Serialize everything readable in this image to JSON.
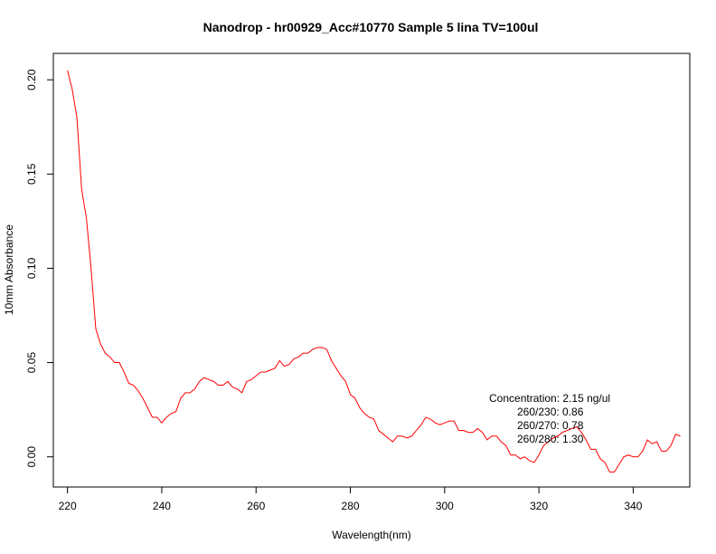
{
  "chart_data": {
    "type": "line",
    "title": "Nanodrop - hr00929_Acc#10770 Sample 5 lina TV=100ul",
    "xlabel": "Wavelength(nm)",
    "ylabel": "10mm Absorbance",
    "xlim": [
      217,
      352
    ],
    "ylim": [
      -0.016,
      0.214
    ],
    "x_ticks": [
      220,
      240,
      260,
      280,
      300,
      320,
      340
    ],
    "x_tick_labels": [
      "220",
      "240",
      "260",
      "280",
      "300",
      "320",
      "340"
    ],
    "y_ticks": [
      0.0,
      0.05,
      0.1,
      0.15,
      0.2
    ],
    "y_tick_labels": [
      "0.00",
      "0.05",
      "0.10",
      "0.15",
      "0.20"
    ],
    "grid": false,
    "line_color": "#ff0000",
    "series": [
      {
        "x": [
          220,
          221,
          222,
          223,
          224,
          225,
          226,
          227,
          228,
          229,
          230,
          231,
          232,
          233,
          234,
          235,
          236,
          237,
          238,
          239,
          240,
          241,
          242,
          243,
          244,
          245,
          246,
          247,
          248,
          249,
          250,
          251,
          252,
          253,
          254,
          255,
          256,
          257,
          258,
          259,
          260,
          261,
          262,
          263,
          264,
          265,
          266,
          267,
          268,
          269,
          270,
          271,
          272,
          273,
          274,
          275,
          276,
          277,
          278,
          279,
          280,
          281,
          282,
          283,
          284,
          285,
          286,
          287,
          288,
          289,
          290,
          291,
          292,
          293,
          294,
          295,
          296,
          297,
          298,
          299,
          300,
          301,
          302,
          303,
          304,
          305,
          306,
          307,
          308,
          309,
          310,
          311,
          312,
          313,
          314,
          315,
          316,
          317,
          318,
          319,
          320,
          321,
          322,
          323,
          324,
          325,
          326,
          327,
          328,
          329,
          330,
          331,
          332,
          333,
          334,
          335,
          336,
          337,
          338,
          339,
          340,
          341,
          342,
          343,
          344,
          345,
          346,
          347,
          348,
          349,
          350
        ],
        "y": [
          0.205,
          0.195,
          0.18,
          0.142,
          0.127,
          0.1,
          0.068,
          0.06,
          0.055,
          0.053,
          0.05,
          0.05,
          0.045,
          0.039,
          0.038,
          0.035,
          0.031,
          0.026,
          0.021,
          0.021,
          0.018,
          0.021,
          0.023,
          0.024,
          0.031,
          0.034,
          0.034,
          0.036,
          0.04,
          0.042,
          0.041,
          0.04,
          0.038,
          0.038,
          0.04,
          0.037,
          0.036,
          0.034,
          0.04,
          0.041,
          0.043,
          0.045,
          0.045,
          0.046,
          0.047,
          0.051,
          0.048,
          0.049,
          0.052,
          0.053,
          0.055,
          0.055,
          0.057,
          0.058,
          0.058,
          0.057,
          0.051,
          0.047,
          0.043,
          0.04,
          0.033,
          0.031,
          0.026,
          0.023,
          0.021,
          0.02,
          0.014,
          0.012,
          0.01,
          0.008,
          0.011,
          0.011,
          0.01,
          0.011,
          0.014,
          0.017,
          0.021,
          0.02,
          0.018,
          0.017,
          0.018,
          0.019,
          0.019,
          0.014,
          0.014,
          0.013,
          0.013,
          0.015,
          0.013,
          0.009,
          0.011,
          0.011,
          0.008,
          0.006,
          0.001,
          0.001,
          -0.001,
          0,
          -0.002,
          -0.003,
          0.001,
          0.006,
          0.008,
          0.01,
          0.011,
          0.013,
          0.014,
          0.015,
          0.016,
          0.013,
          0.009,
          0.004,
          0.004,
          -0.001,
          -0.003,
          -0.008,
          -0.008,
          -0.004,
          0,
          0.001,
          0,
          0,
          0.003,
          0.009,
          0.007,
          0.008,
          0.003,
          0.003,
          0.006,
          0.012,
          0.011
        ]
      }
    ],
    "annotations": {
      "concentration": "Concentration: 2.15 ng/ul",
      "ratio_230": "260/230: 0.86",
      "ratio_270": "260/270: 0.78",
      "ratio_280": "260/280: 1.30"
    }
  }
}
